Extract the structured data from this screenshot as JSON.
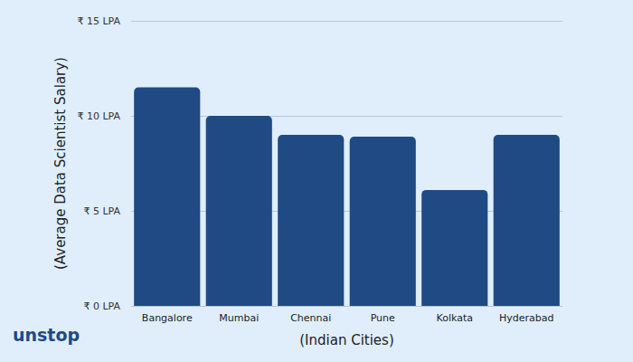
{
  "chart_data": {
    "type": "bar",
    "x_label": "(Indian Cities)",
    "y_label": "(Average Data Scientist Salary)",
    "categories": [
      "Bangalore",
      "Mumbai",
      "Chennai",
      "Pune",
      "Kolkata",
      "Hyderabad"
    ],
    "values": [
      11.5,
      10,
      9,
      8.9,
      6.1,
      9
    ],
    "color": "#1f4a84",
    "ylim": [
      0,
      15
    ],
    "yticks": [
      {
        "value": 0,
        "label": "₹ 0 LPA"
      },
      {
        "value": 5,
        "label": "₹ 5 LPA"
      },
      {
        "value": 10,
        "label": "₹ 10 LPA"
      },
      {
        "value": 15,
        "label": "₹ 15 LPA"
      }
    ],
    "grid": true,
    "annotations": [
      "unstop"
    ]
  }
}
